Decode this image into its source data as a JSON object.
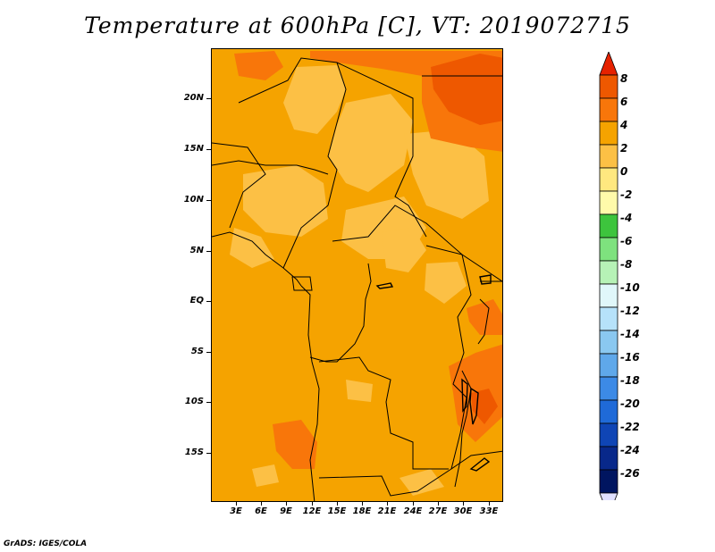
{
  "title": "Temperature at 600hPa [C], VT: 2019072715",
  "footer": "GrADS: IGES/COLA",
  "map": {
    "latitude_labels": [
      "20N",
      "15N",
      "10N",
      "5N",
      "EQ",
      "5S",
      "10S",
      "15S"
    ],
    "longitude_labels": [
      "3E",
      "6E",
      "9E",
      "12E",
      "15E",
      "18E",
      "21E",
      "24E",
      "27E",
      "30E",
      "33E"
    ],
    "background_color": "#f5a300"
  },
  "colorbar": {
    "labels": [
      "8",
      "6",
      "4",
      "2",
      "0",
      "-2",
      "-4",
      "-6",
      "-8",
      "-10",
      "-12",
      "-14",
      "-16",
      "-18",
      "-20",
      "-22",
      "-24",
      "-26"
    ],
    "colors": [
      "#e62200",
      "#ee5800",
      "#f8760a",
      "#f5a300",
      "#fcc045",
      "#ffe87f",
      "#fffaaa",
      "#3dc43d",
      "#7ee27e",
      "#b6f2b6",
      "#e0f7fa",
      "#b6e2fa",
      "#8ac8f0",
      "#5fa8ea",
      "#3c8ae6",
      "#1f6ad8",
      "#0f45b5",
      "#08288a",
      "#001560",
      "#e0e0ff"
    ]
  }
}
